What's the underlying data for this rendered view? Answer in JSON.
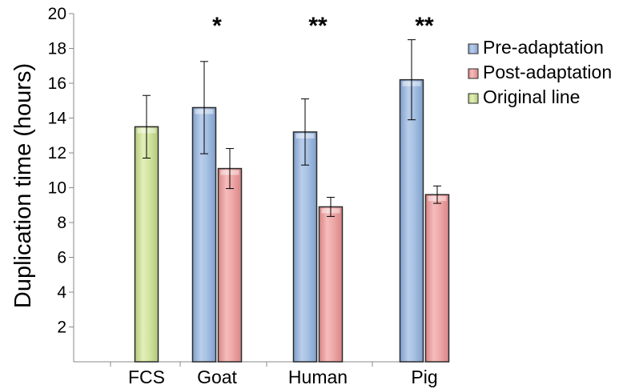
{
  "chart_data": {
    "type": "bar",
    "ylabel": "Duplication time (hours)",
    "xlabel": "",
    "ylim": [
      0,
      20
    ],
    "yticks": [
      2,
      4,
      6,
      8,
      10,
      12,
      14,
      16,
      18,
      20
    ],
    "categories": [
      "FCS",
      "Goat",
      "Human",
      "Pig"
    ],
    "series": [
      {
        "name": "Pre-adaptation",
        "color": "#a9c2e4",
        "values": [
          null,
          14.6,
          13.2,
          16.2
        ],
        "errors": [
          null,
          2.65,
          1.9,
          2.3
        ]
      },
      {
        "name": "Post-adaptation",
        "color": "#efa9a9",
        "values": [
          null,
          11.1,
          8.9,
          9.6
        ],
        "errors": [
          null,
          1.15,
          0.55,
          0.5
        ]
      },
      {
        "name": "Original line",
        "color": "#d4e5a3",
        "values": [
          13.5,
          null,
          null,
          null
        ],
        "errors": [
          1.8,
          null,
          null,
          null
        ]
      }
    ],
    "significance": [
      "",
      "*",
      "**",
      "**"
    ],
    "grid": false,
    "legend_position": "top-right"
  }
}
